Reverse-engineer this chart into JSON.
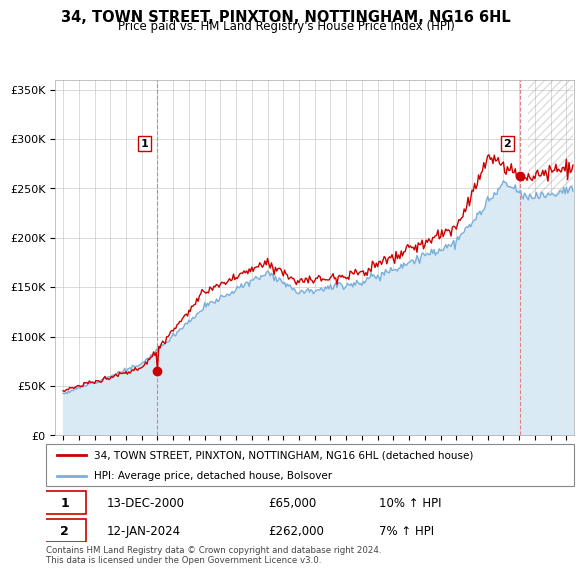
{
  "title": "34, TOWN STREET, PINXTON, NOTTINGHAM, NG16 6HL",
  "subtitle": "Price paid vs. HM Land Registry's House Price Index (HPI)",
  "ylabel_ticks": [
    "£0",
    "£50K",
    "£100K",
    "£150K",
    "£200K",
    "£250K",
    "£300K",
    "£350K"
  ],
  "ytick_values": [
    0,
    50000,
    100000,
    150000,
    200000,
    250000,
    300000,
    350000
  ],
  "ylim": [
    0,
    360000
  ],
  "xlim_start": 1994.5,
  "xlim_end": 2027.5,
  "sale1_year": 2000.96,
  "sale1_price": 65000,
  "sale2_year": 2024.04,
  "sale2_price": 262000,
  "future_start": 2024.5,
  "legend_line1": "34, TOWN STREET, PINXTON, NOTTINGHAM, NG16 6HL (detached house)",
  "legend_line2": "HPI: Average price, detached house, Bolsover",
  "annotation1_label": "1",
  "annotation1_date": "13-DEC-2000",
  "annotation1_price": "£65,000",
  "annotation1_hpi": "10% ↑ HPI",
  "annotation2_label": "2",
  "annotation2_date": "12-JAN-2024",
  "annotation2_price": "£262,000",
  "annotation2_hpi": "7% ↑ HPI",
  "footer": "Contains HM Land Registry data © Crown copyright and database right 2024.\nThis data is licensed under the Open Government Licence v3.0.",
  "line_color_price": "#cc0000",
  "line_color_hpi": "#7aafdb",
  "fill_color_hpi": "#daeaf5",
  "bg_color": "#ffffff",
  "grid_color": "#cccccc",
  "marker_color": "#cc0000",
  "annotation_box_color": "#cc0000",
  "hatch_color": "#aaaaaa"
}
